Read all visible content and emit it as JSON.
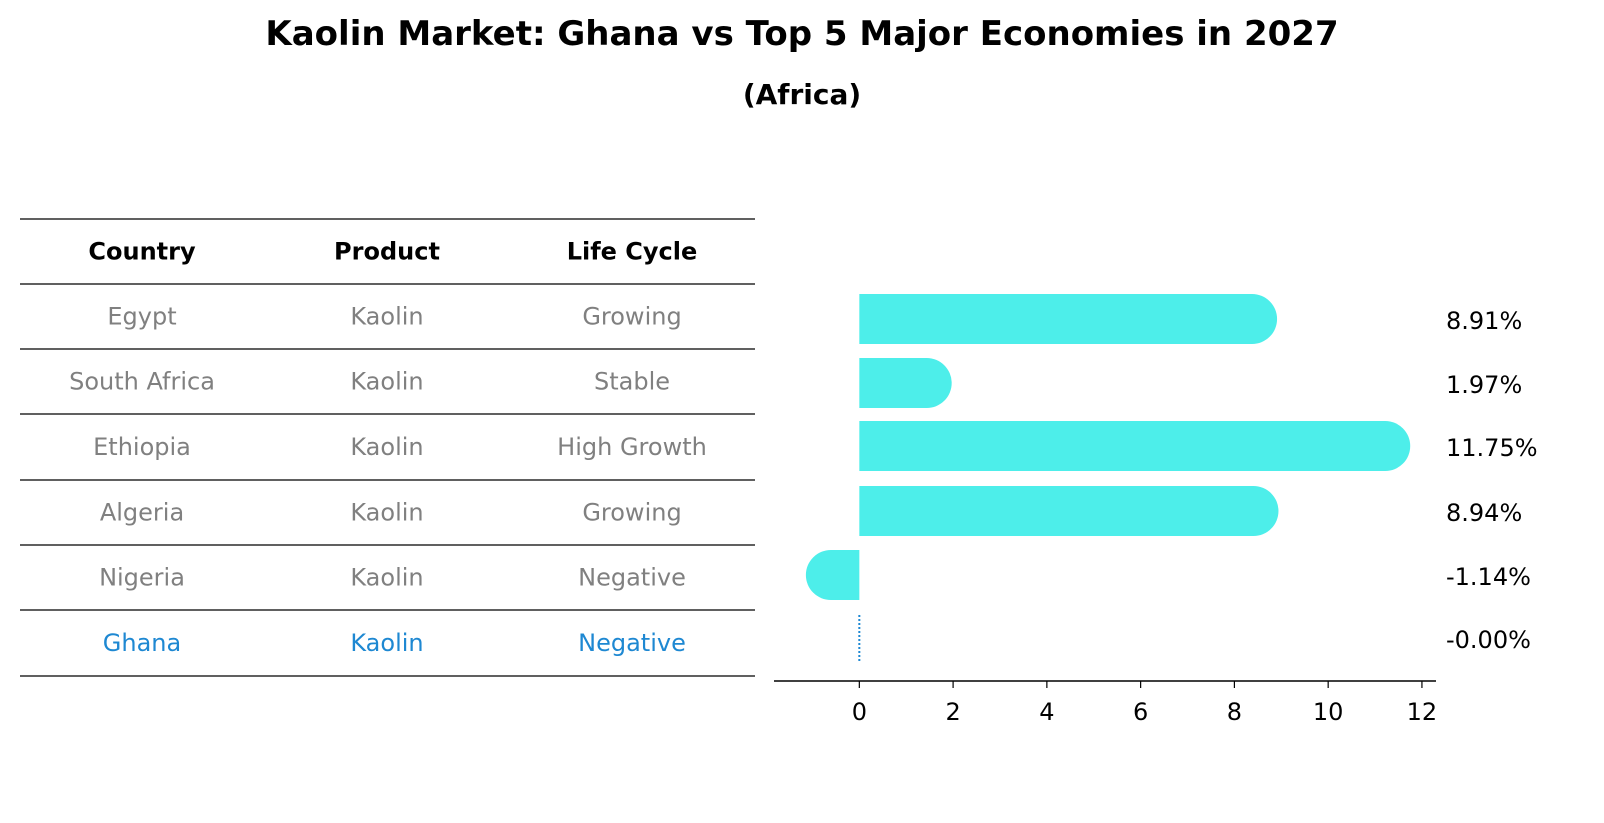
{
  "title": "Kaolin Market: Ghana vs Top 5 Major Economies in 2027",
  "subtitle": "(Africa)",
  "table": {
    "columns": [
      "Country",
      "Product",
      "Life Cycle"
    ],
    "rows": [
      {
        "country": "Egypt",
        "product": "Kaolin",
        "life_cycle": "Growing",
        "highlight": false
      },
      {
        "country": "South Africa",
        "product": "Kaolin",
        "life_cycle": "Stable",
        "highlight": false
      },
      {
        "country": "Ethiopia",
        "product": "Kaolin",
        "life_cycle": "High Growth",
        "highlight": false
      },
      {
        "country": "Algeria",
        "product": "Kaolin",
        "life_cycle": "Growing",
        "highlight": false
      },
      {
        "country": "Nigeria",
        "product": "Kaolin",
        "life_cycle": "Negative",
        "highlight": false
      },
      {
        "country": "Ghana",
        "product": "Kaolin",
        "life_cycle": "Negative",
        "highlight": true
      }
    ]
  },
  "colors": {
    "bar": "#4DEEEA",
    "highlight": "#1E88D2",
    "muted_text": "#808080",
    "rule": "#000000"
  },
  "chart_data": {
    "type": "bar",
    "orientation": "horizontal",
    "categories": [
      "Egypt",
      "South Africa",
      "Ethiopia",
      "Algeria",
      "Nigeria",
      "Ghana"
    ],
    "values": [
      8.91,
      1.97,
      11.75,
      8.94,
      -1.14,
      -0.0
    ],
    "labels": [
      "8.91%",
      "1.97%",
      "11.75%",
      "8.94%",
      "-1.14%",
      "-0.00%"
    ],
    "xlim": [
      -1.82,
      12.3
    ],
    "xticks": [
      0,
      2,
      4,
      6,
      8,
      10,
      12
    ],
    "grid": false,
    "title": "Kaolin Market: Ghana vs Top 5 Major Economies in 2027",
    "subtitle": "(Africa)"
  }
}
